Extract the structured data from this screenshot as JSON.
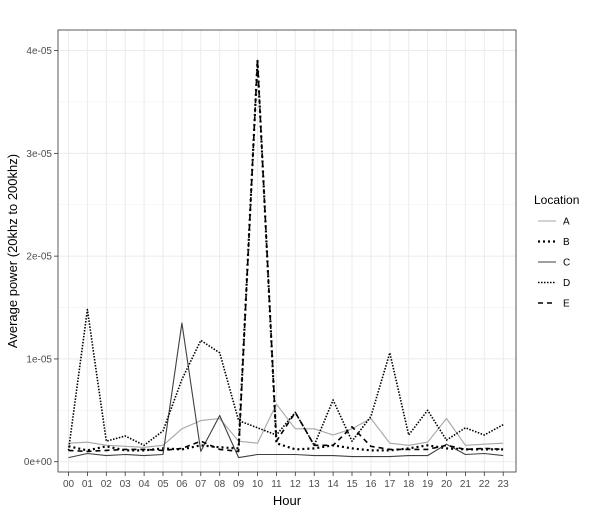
{
  "chart_data": {
    "type": "line",
    "title": "",
    "xlabel": "Hour",
    "ylabel": "Average power (20khz to 200khz)",
    "categories": [
      "00",
      "01",
      "02",
      "03",
      "04",
      "05",
      "06",
      "07",
      "08",
      "09",
      "10",
      "11",
      "12",
      "13",
      "14",
      "15",
      "16",
      "17",
      "18",
      "19",
      "20",
      "21",
      "22",
      "23"
    ],
    "yticks": [
      {
        "value": 0,
        "label": "0e+00"
      },
      {
        "value": 1e-05,
        "label": "1e-05"
      },
      {
        "value": 2e-05,
        "label": "2e-05"
      },
      {
        "value": 3e-05,
        "label": "3e-05"
      },
      {
        "value": 4e-05,
        "label": "4e-05"
      }
    ],
    "ylim": [
      -1e-06,
      4.2e-05
    ],
    "grid": true,
    "legend_position": "right",
    "legend_title": "Location",
    "series": [
      {
        "name": "A",
        "color": "#a6a6a6",
        "dash": "solid",
        "values": [
          1.8e-06,
          1.9e-06,
          1.6e-06,
          1.5e-06,
          1.4e-06,
          1.6e-06,
          3.2e-06,
          4e-06,
          4.2e-06,
          2e-06,
          1.8e-06,
          5.6e-06,
          3.2e-06,
          3.2e-06,
          2.6e-06,
          3.2e-06,
          4.2e-06,
          1.8e-06,
          1.6e-06,
          1.9e-06,
          4.2e-06,
          1.6e-06,
          1.7e-06,
          1.8e-06
        ]
      },
      {
        "name": "B",
        "color": "#000000",
        "dash": "dotted",
        "values": [
          1.5e-06,
          1.1e-06,
          1.5e-06,
          1.1e-06,
          1.1e-06,
          1.3e-06,
          1.2e-06,
          1.6e-06,
          1.4e-06,
          1.3e-06,
          3.9e-05,
          1.8e-06,
          1.2e-06,
          1.3e-06,
          1.6e-06,
          1.3e-06,
          1.1e-06,
          1.1e-06,
          1.3e-06,
          1.6e-06,
          1.3e-06,
          1.2e-06,
          1.2e-06,
          1.2e-06
        ]
      },
      {
        "name": "C",
        "color": "#404040",
        "dash": "solid",
        "values": [
          4e-07,
          8e-07,
          6e-07,
          7e-07,
          6e-07,
          7e-07,
          1.35e-05,
          1e-06,
          4.5e-06,
          4e-07,
          7e-07,
          7e-07,
          7e-07,
          6e-07,
          6e-07,
          5e-07,
          5e-07,
          5e-07,
          6e-07,
          6e-07,
          1.7e-06,
          7e-07,
          8e-07,
          6e-07
        ]
      },
      {
        "name": "D",
        "color": "#000000",
        "dash": "dotted-thin",
        "values": [
          1.1e-06,
          1.48e-05,
          2e-06,
          2.5e-06,
          1.6e-06,
          3e-06,
          8e-06,
          1.18e-05,
          1.06e-05,
          4e-06,
          3.3e-06,
          2.6e-06,
          4.8e-06,
          1.6e-06,
          6e-06,
          2e-06,
          4.4e-06,
          1.06e-05,
          2.6e-06,
          5e-06,
          2.1e-06,
          3.3e-06,
          2.6e-06,
          3.6e-06
        ]
      },
      {
        "name": "E",
        "color": "#000000",
        "dash": "dashed",
        "values": [
          1.1e-06,
          1e-06,
          1.1e-06,
          1.2e-06,
          1.2e-06,
          1.1e-06,
          1.3e-06,
          2e-06,
          1.2e-06,
          1e-06,
          3.9e-05,
          2e-06,
          4.8e-06,
          1.6e-06,
          1.6e-06,
          3.4e-06,
          1.5e-06,
          1.2e-06,
          1.2e-06,
          1.2e-06,
          1.6e-06,
          1.2e-06,
          1.3e-06,
          1.2e-06
        ]
      }
    ]
  }
}
